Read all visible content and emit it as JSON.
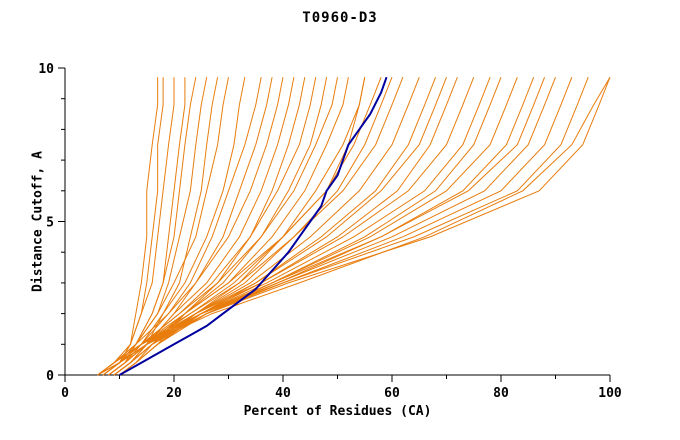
{
  "chart_data": {
    "type": "line",
    "title": "T0960-D3",
    "xlabel": "Percent of Residues (CA)",
    "ylabel": "Distance Cutoff, A",
    "xlim": [
      0,
      100
    ],
    "ylim": [
      0,
      10
    ],
    "x_major_ticks": [
      0,
      20,
      40,
      60,
      80,
      100
    ],
    "x_minor_step": 10,
    "y_major_ticks": [
      0,
      5,
      10
    ],
    "y_minor_step": 1,
    "grid": false,
    "legend_position": "none",
    "colors": {
      "model_line": "#e87d0d",
      "highlight_line": "#0000a0",
      "axis": "#000000",
      "background": "#ffffff"
    },
    "y_grid": [
      0,
      0.4,
      1,
      2,
      3,
      4.5,
      6,
      7.5,
      8.8,
      9.7
    ],
    "model_curves": [
      [
        6,
        10,
        12,
        13,
        14,
        15,
        15,
        16,
        17,
        17
      ],
      [
        7,
        10,
        12,
        14,
        15,
        16,
        17,
        17,
        18,
        18
      ],
      [
        6,
        9,
        12,
        14,
        16,
        17,
        18,
        19,
        20,
        20
      ],
      [
        8,
        11,
        13,
        16,
        18,
        19,
        20,
        21,
        22,
        22
      ],
      [
        6,
        10,
        13,
        16,
        18,
        20,
        21,
        22,
        23,
        24
      ],
      [
        7,
        10,
        13,
        17,
        19,
        21,
        23,
        24,
        25,
        26
      ],
      [
        9,
        12,
        15,
        18,
        21,
        23,
        25,
        26,
        27,
        28
      ],
      [
        6,
        9,
        13,
        17,
        20,
        24,
        26,
        28,
        29,
        30
      ],
      [
        8,
        11,
        14,
        18,
        22,
        26,
        29,
        31,
        32,
        33
      ],
      [
        7,
        10,
        14,
        19,
        23,
        27,
        30,
        33,
        35,
        36
      ],
      [
        9,
        12,
        15,
        20,
        24,
        29,
        32,
        35,
        37,
        38
      ],
      [
        6,
        9,
        13,
        19,
        24,
        30,
        34,
        37,
        39,
        40
      ],
      [
        8,
        11,
        15,
        20,
        26,
        32,
        36,
        39,
        41,
        42
      ],
      [
        10,
        13,
        17,
        22,
        28,
        34,
        38,
        41,
        43,
        44
      ],
      [
        7,
        10,
        14,
        21,
        27,
        34,
        39,
        43,
        45,
        46
      ],
      [
        9,
        12,
        16,
        22,
        29,
        36,
        41,
        45,
        47,
        48
      ],
      [
        6,
        9,
        14,
        21,
        28,
        36,
        42,
        46,
        49,
        50
      ],
      [
        8,
        11,
        15,
        22,
        30,
        38,
        44,
        48,
        51,
        52
      ],
      [
        10,
        13,
        17,
        24,
        32,
        40,
        46,
        51,
        54,
        55
      ],
      [
        7,
        10,
        15,
        23,
        31,
        40,
        48,
        53,
        56,
        58
      ],
      [
        9,
        12,
        16,
        24,
        33,
        42,
        50,
        55,
        58,
        60
      ],
      [
        6,
        9,
        14,
        23,
        32,
        42,
        51,
        57,
        60,
        62
      ],
      [
        8,
        11,
        15,
        24,
        34,
        45,
        54,
        60,
        63,
        65
      ],
      [
        10,
        13,
        17,
        25,
        35,
        47,
        57,
        63,
        66,
        68
      ],
      [
        7,
        10,
        15,
        24,
        35,
        48,
        58,
        65,
        68,
        70
      ],
      [
        9,
        12,
        16,
        25,
        36,
        50,
        61,
        67,
        70,
        72
      ],
      [
        6,
        9,
        14,
        24,
        36,
        51,
        63,
        70,
        73,
        75
      ],
      [
        8,
        11,
        15,
        25,
        37,
        53,
        66,
        73,
        76,
        78
      ],
      [
        10,
        13,
        17,
        26,
        38,
        55,
        68,
        75,
        78,
        80
      ],
      [
        7,
        10,
        15,
        25,
        38,
        56,
        70,
        78,
        81,
        83
      ],
      [
        9,
        12,
        16,
        26,
        39,
        58,
        73,
        81,
        84,
        86
      ],
      [
        6,
        9,
        14,
        25,
        38,
        58,
        74,
        83,
        86,
        88
      ],
      [
        8,
        11,
        15,
        25,
        39,
        60,
        77,
        85,
        88,
        90
      ],
      [
        10,
        13,
        16,
        26,
        40,
        62,
        80,
        88,
        91,
        93
      ],
      [
        7,
        10,
        14,
        25,
        40,
        64,
        83,
        91,
        94,
        96
      ],
      [
        9,
        12,
        15,
        26,
        41,
        67,
        87,
        95,
        98,
        100
      ],
      [
        8,
        11,
        15,
        27,
        43,
        66,
        84,
        93,
        97,
        100
      ],
      [
        6,
        10,
        14,
        22,
        30,
        40,
        48,
        52,
        54,
        55
      ]
    ],
    "highlight_curve": {
      "name": "highlighted-model",
      "x": [
        10,
        12,
        14,
        17,
        20,
        23,
        26,
        29,
        32,
        35,
        37,
        39,
        41,
        43,
        45,
        47,
        48,
        50,
        51,
        52,
        54,
        56,
        58,
        59
      ],
      "y": [
        0,
        0.2,
        0.4,
        0.7,
        1.0,
        1.3,
        1.6,
        2.0,
        2.4,
        2.8,
        3.2,
        3.6,
        4.0,
        4.5,
        5.0,
        5.5,
        6.0,
        6.5,
        7.0,
        7.5,
        8.0,
        8.5,
        9.2,
        9.7
      ]
    }
  }
}
